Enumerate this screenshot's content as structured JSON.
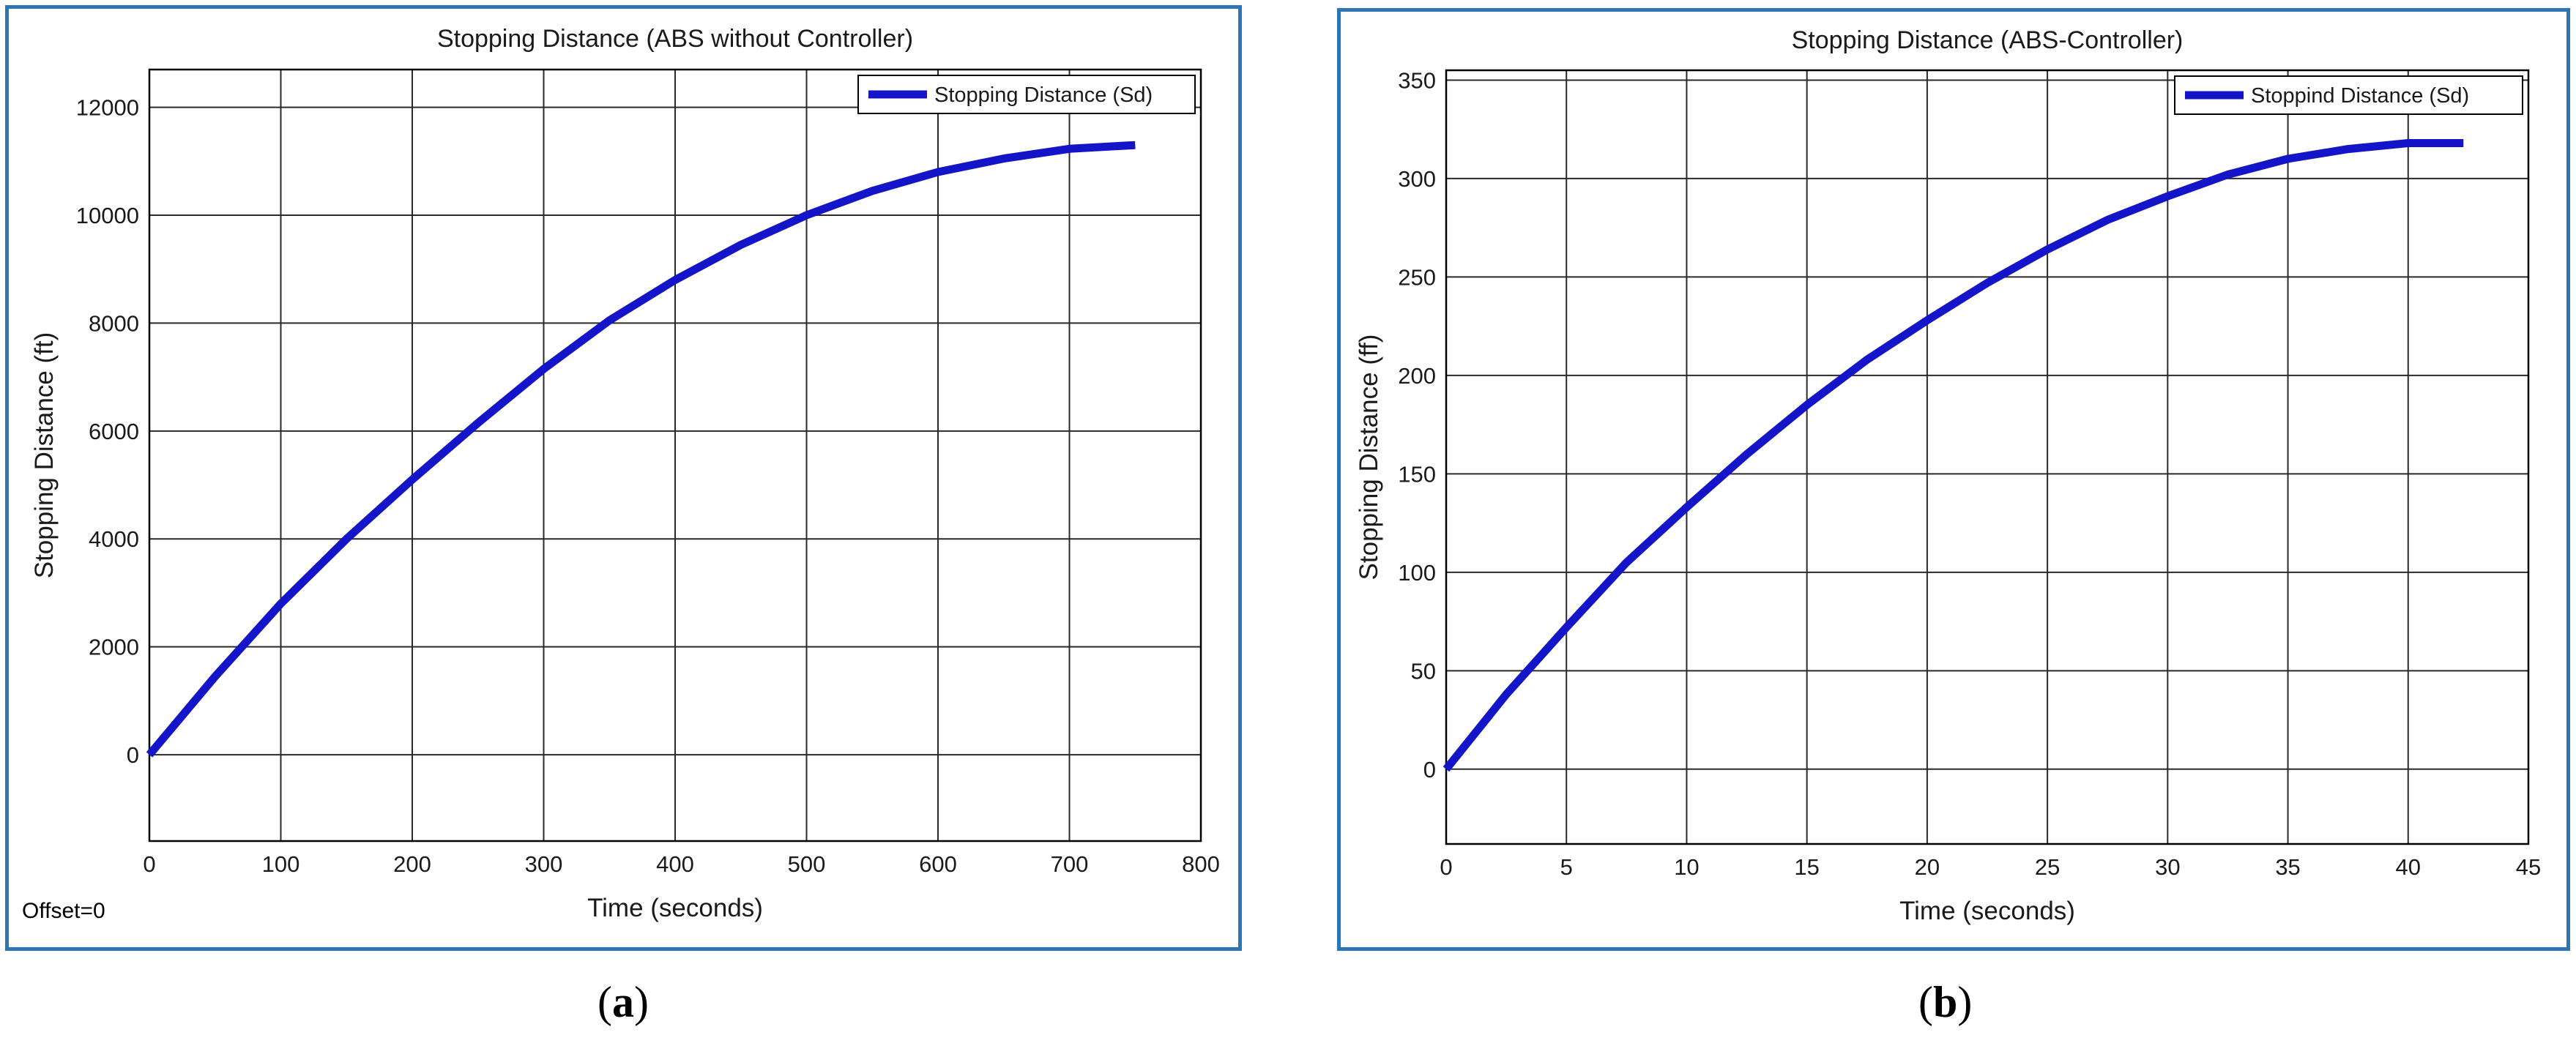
{
  "figure": {
    "captions": [
      {
        "open": "(",
        "letter": "a",
        "close": ")"
      },
      {
        "open": "(",
        "letter": "b",
        "close": ")"
      }
    ],
    "offset_label": "Offset=0",
    "colors": {
      "frame": "#2e75b6",
      "line": "#1414c8",
      "grid": "#2a2a2a"
    }
  },
  "chart_data": [
    {
      "type": "line",
      "title": "Stopping Distance (ABS without Controller)",
      "xlabel": "Time (seconds)",
      "ylabel": "Stopping Distance (ft)",
      "xlim": [
        0,
        800
      ],
      "ylim": [
        -1600,
        12700
      ],
      "xticks": [
        0,
        100,
        200,
        300,
        400,
        500,
        600,
        700,
        800
      ],
      "yticks": [
        0,
        2000,
        4000,
        6000,
        8000,
        10000,
        12000
      ],
      "grid": true,
      "legend": "top-right",
      "series": [
        {
          "name": "Stopping Distance (Sd)",
          "x": [
            0,
            50,
            100,
            150,
            200,
            250,
            300,
            350,
            400,
            450,
            500,
            550,
            600,
            650,
            700,
            750
          ],
          "y": [
            0,
            1450,
            2800,
            4000,
            5100,
            6150,
            7150,
            8050,
            8800,
            9450,
            10000,
            10450,
            10800,
            11050,
            11230,
            11300
          ]
        }
      ]
    },
    {
      "type": "line",
      "title": "Stopping Distance (ABS-Controller)",
      "xlabel": "Time (seconds)",
      "ylabel": "Stopping Distance (ff)",
      "xlim": [
        0,
        45
      ],
      "ylim": [
        -38,
        355
      ],
      "xticks": [
        0,
        5,
        10,
        15,
        20,
        25,
        30,
        35,
        40,
        45
      ],
      "yticks": [
        0,
        50,
        100,
        150,
        200,
        250,
        300,
        350
      ],
      "grid": true,
      "legend": "top-right",
      "series": [
        {
          "name": "Stoppind Distance (Sd)",
          "x": [
            0,
            2.5,
            5,
            7.5,
            10,
            12.5,
            15,
            17.5,
            20,
            22.5,
            25,
            27.5,
            30,
            32.5,
            35,
            37.5,
            40,
            42.3
          ],
          "y": [
            0,
            38,
            72,
            105,
            133,
            160,
            185,
            208,
            228,
            247,
            264,
            279,
            291,
            302,
            310,
            315,
            318,
            318
          ]
        }
      ]
    }
  ]
}
